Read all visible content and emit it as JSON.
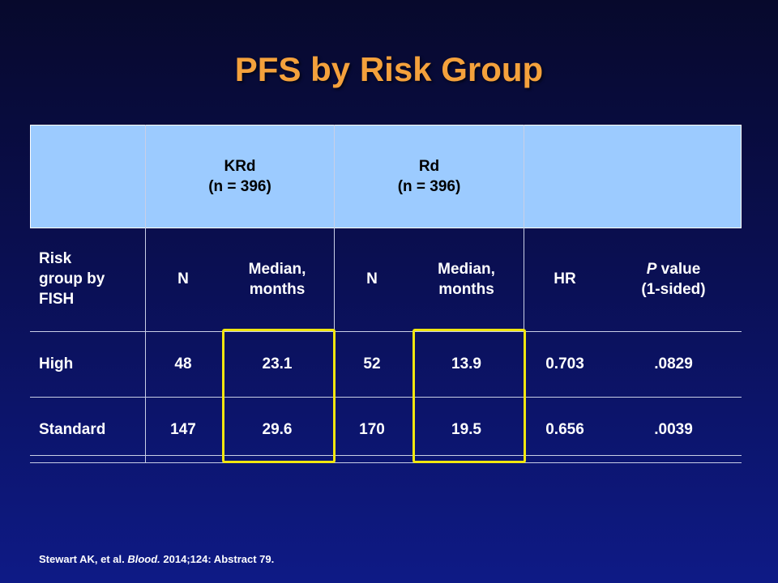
{
  "slide": {
    "title": "PFS by Risk Group",
    "citation": {
      "authors": "Stewart AK, et al.",
      "journal": "Blood.",
      "details": "2014;124: Abstract 79."
    }
  },
  "table": {
    "group_headers": [
      {
        "name": "KRd",
        "n": "(n = 396)"
      },
      {
        "name": "Rd",
        "n": "(n = 396)"
      }
    ],
    "column_headers": {
      "risk": "Risk\ngroup by\nFISH",
      "n1": "N",
      "median1": "Median,\nmonths",
      "n2": "N",
      "median2": "Median,\nmonths",
      "hr": "HR",
      "p_italic": "P",
      "p_rest": " value",
      "p_sub": "(1-sided)"
    },
    "rows": [
      {
        "group": "High",
        "krd_n": "48",
        "krd_median": "23.1",
        "rd_n": "52",
        "rd_median": "13.9",
        "hr": "0.703",
        "p": ".0829"
      },
      {
        "group": "Standard",
        "krd_n": "147",
        "krd_median": "29.6",
        "rd_n": "170",
        "rd_median": "19.5",
        "hr": "0.656",
        "p": ".0039"
      }
    ],
    "highlight_color": "#f1e60f",
    "header_fill": "#9ccbff"
  }
}
